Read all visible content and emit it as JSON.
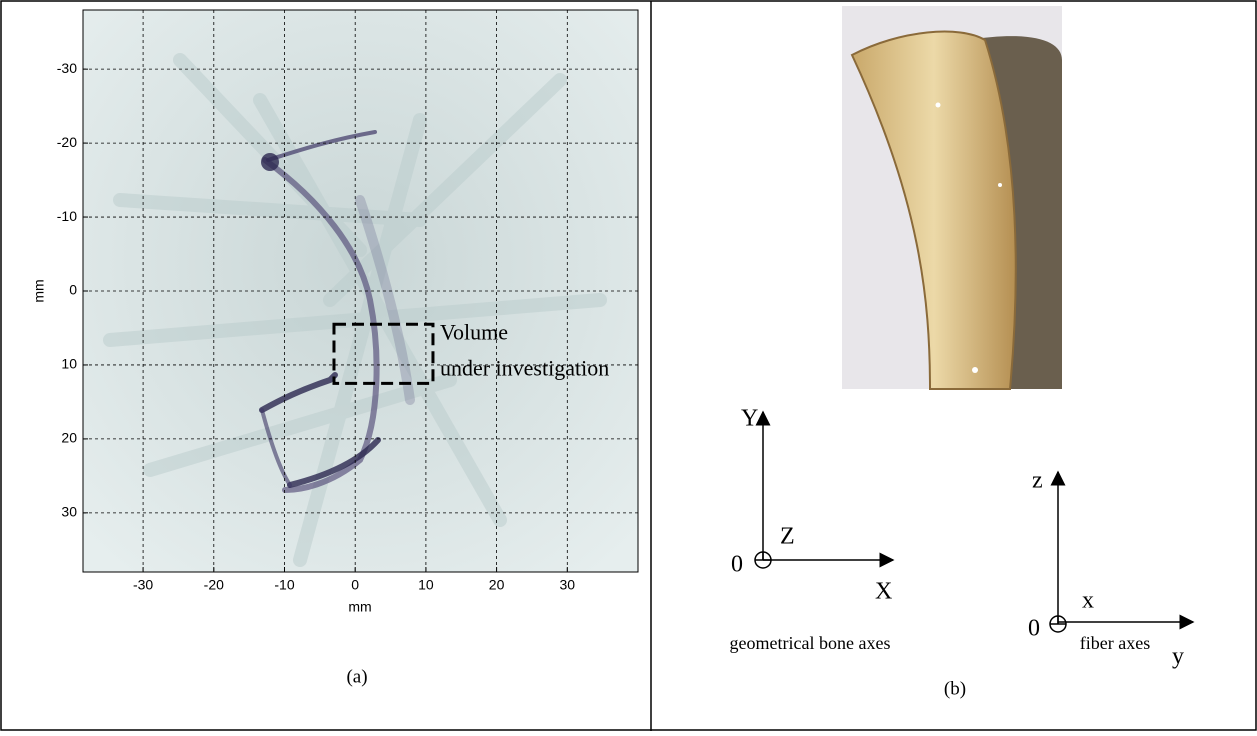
{
  "chart_data": {
    "type": "image",
    "xlabel": "mm",
    "ylabel": "mm",
    "xlim": [
      -38.5,
      40
    ],
    "ylim": [
      -38,
      38
    ],
    "y_inverted": true,
    "xticks": [
      -30,
      -20,
      -10,
      0,
      10,
      20,
      30
    ],
    "yticks": [
      -30,
      -20,
      -10,
      0,
      10,
      20,
      30
    ],
    "grid": true,
    "region": {
      "x": [
        -3,
        11
      ],
      "y": [
        4.5,
        12.5
      ],
      "label_lines": [
        "Volume",
        "under investigation"
      ]
    }
  },
  "caption_a": "(a)",
  "caption_b": "(b)",
  "bone_axes": {
    "vertical": "Y",
    "normal": "Z",
    "horizontal": "X",
    "origin": "0",
    "label": "geometrical bone axes"
  },
  "fiber_axes": {
    "vertical": "z",
    "normal": "x",
    "horizontal": "y",
    "origin": "0",
    "label": "fiber axes"
  }
}
